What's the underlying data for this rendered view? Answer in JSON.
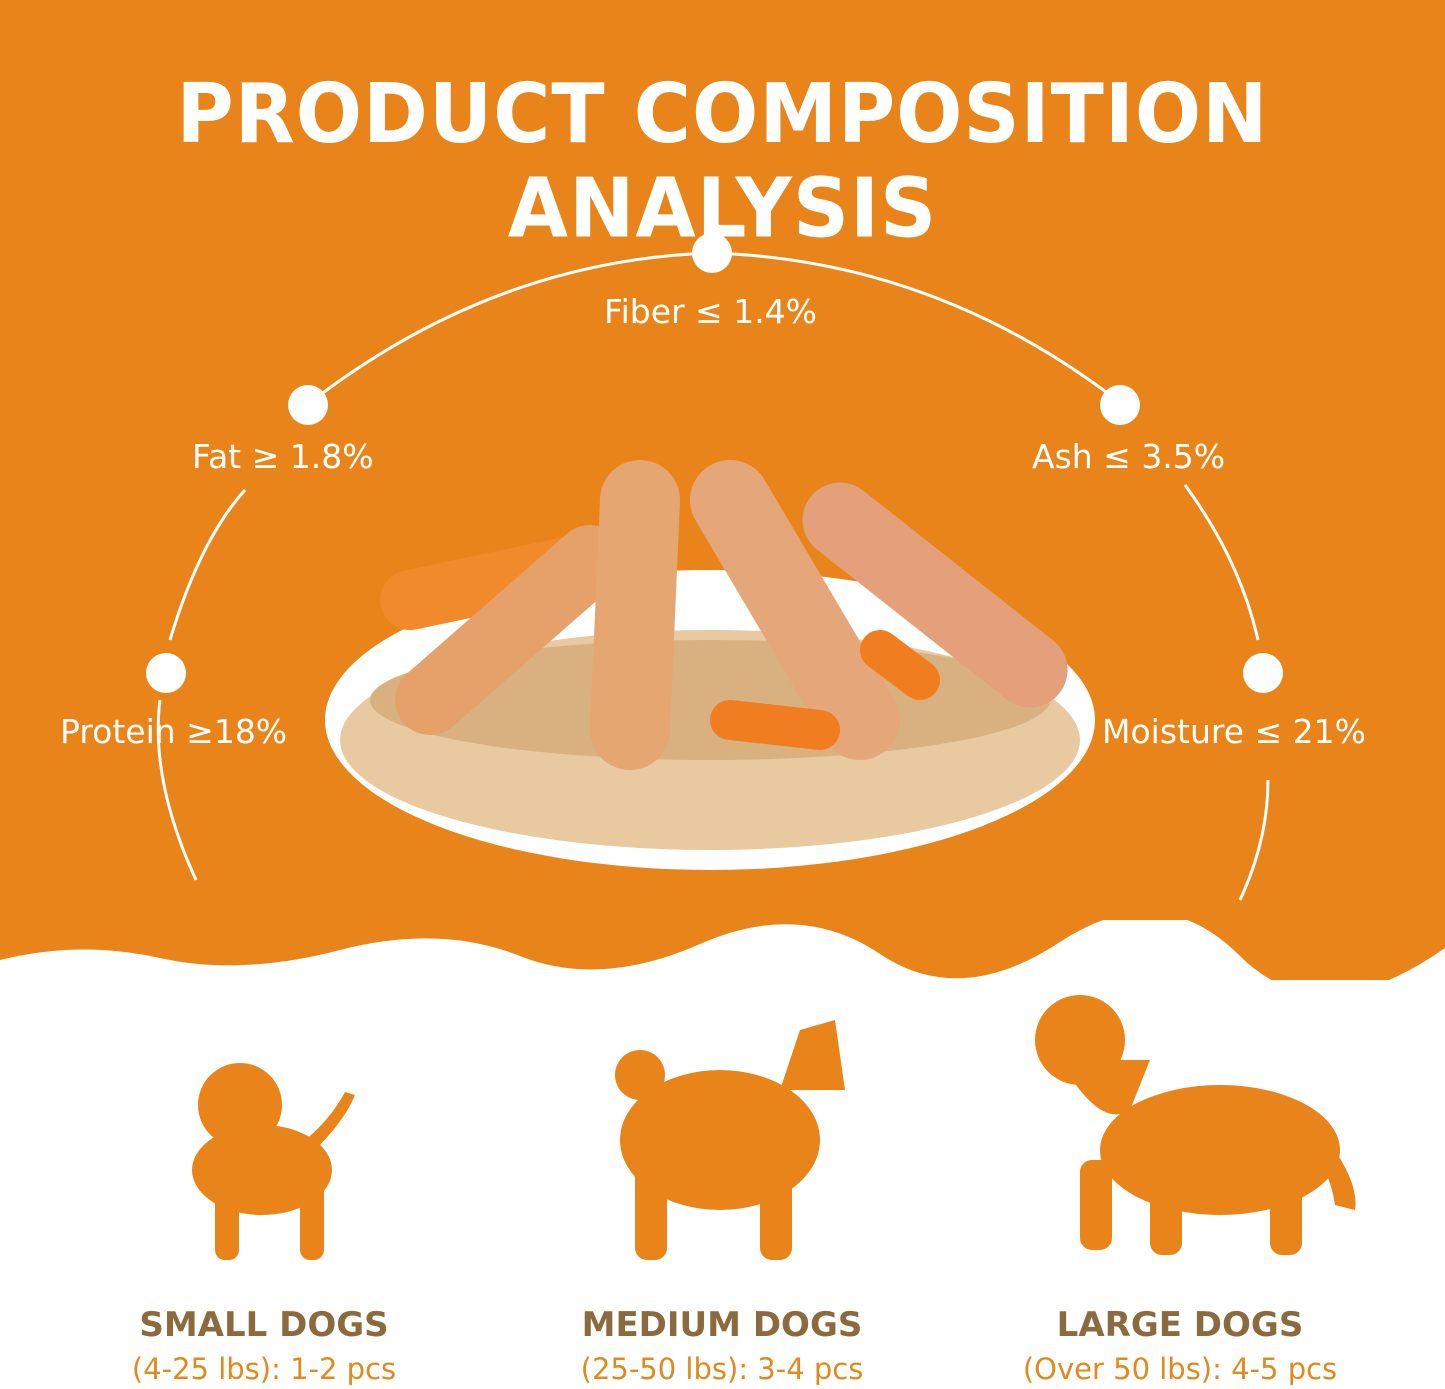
{
  "title": "PRODUCT COMPOSITION ANALYSIS",
  "colors": {
    "background": "#E8841A",
    "accent_text": "#8B6A3E",
    "subtext": "#E08A1E"
  },
  "nutrients": [
    {
      "label": "Protein ≥18%"
    },
    {
      "label": "Fat ≥ 1.8%"
    },
    {
      "label": "Fiber ≤ 1.4%"
    },
    {
      "label": "Ash ≤ 3.5%"
    },
    {
      "label": "Moisture ≤ 21%"
    }
  ],
  "dogs": [
    {
      "name": "SMALL DOGS",
      "dosage": "(4-25 lbs): 1-2 pcs",
      "icon": "small-dog-icon"
    },
    {
      "name": "MEDIUM DOGS",
      "dosage": "(25-50 lbs): 3-4 pcs",
      "icon": "medium-dog-icon"
    },
    {
      "name": "LARGE DOGS",
      "dosage": "(Over 50 lbs): 4-5 pcs",
      "icon": "large-dog-icon"
    }
  ]
}
